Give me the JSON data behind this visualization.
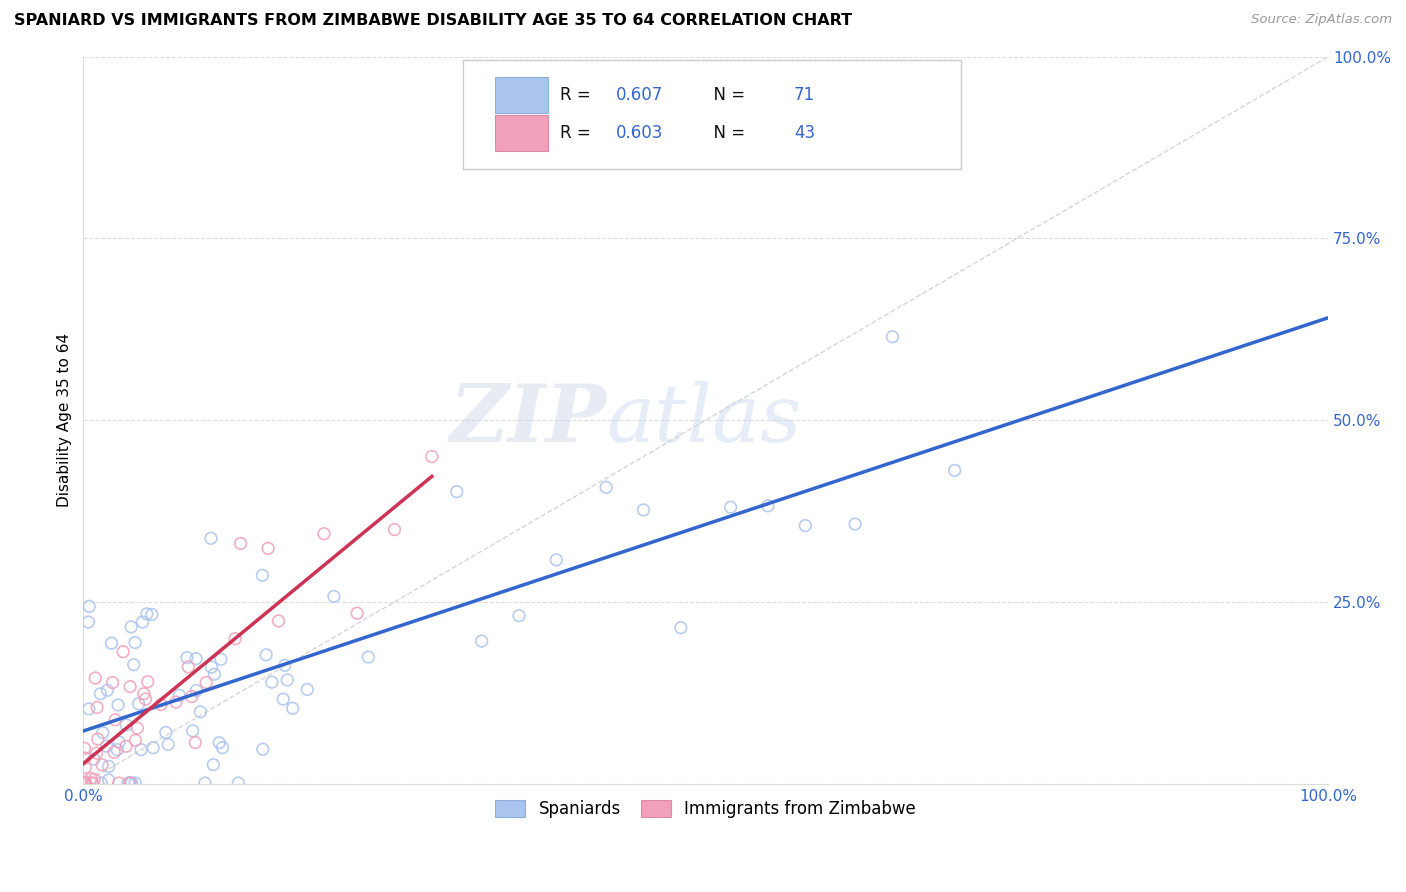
{
  "title": "SPANIARD VS IMMIGRANTS FROM ZIMBABWE DISABILITY AGE 35 TO 64 CORRELATION CHART",
  "source": "Source: ZipAtlas.com",
  "ylabel": "Disability Age 35 to 64",
  "legend_label1": "R = 0.607   N = 71",
  "legend_label2": "R = 0.603   N = 43",
  "legend_series1": "Spaniards",
  "legend_series2": "Immigrants from Zimbabwe",
  "color1": "#aac4ee",
  "color2": "#f0a0b8",
  "trendline_color1": "#3366cc",
  "trendline_color2": "#cc3355",
  "diagonal_color": "#cccccc",
  "watermark_zip": "ZIP",
  "watermark_atlas": "atlas",
  "background_color": "#ffffff",
  "grid_color": "#dddddd",
  "tick_color": "#3366cc",
  "title_color": "#000000",
  "source_color": "#999999",
  "R1": 0.607,
  "N1": 71,
  "R2": 0.603,
  "N2": 43
}
